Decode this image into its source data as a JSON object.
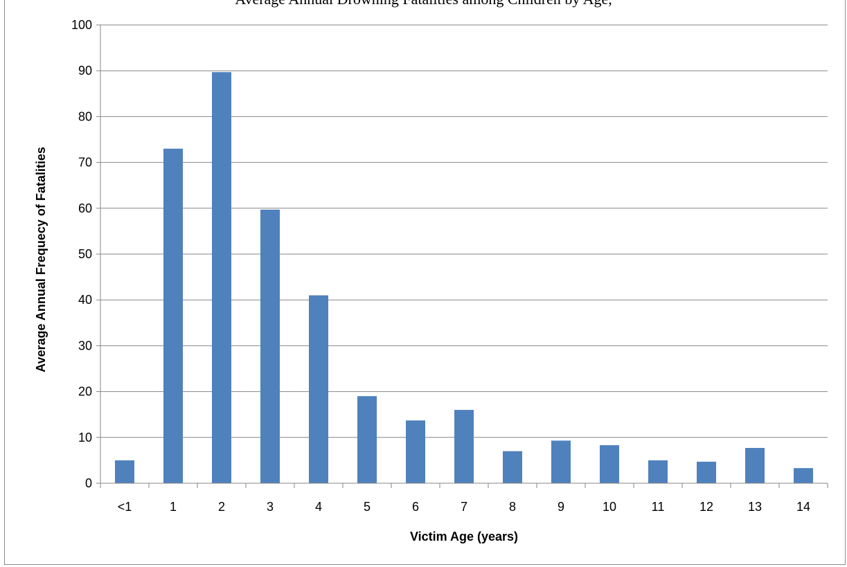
{
  "chart_data": {
    "type": "bar",
    "title": "Average Annual Drowning Fatalities among Children by Age,",
    "xlabel": "Victim Age (years)",
    "ylabel": "Average Annual Frequecy of Fatalities",
    "categories": [
      "<1",
      "1",
      "2",
      "3",
      "4",
      "5",
      "6",
      "7",
      "8",
      "9",
      "10",
      "11",
      "12",
      "13",
      "14"
    ],
    "values": [
      5,
      73,
      89.7,
      59.7,
      41,
      19,
      13.7,
      16,
      7,
      9.3,
      8.3,
      5,
      4.7,
      7.7,
      3.3
    ],
    "ylim": [
      0,
      100
    ],
    "yticks": [
      "0",
      "10",
      "20",
      "30",
      "40",
      "50",
      "60",
      "70",
      "80",
      "90",
      "100"
    ],
    "grid": true,
    "legend": "none",
    "bar_color": "#4f81bd",
    "gridline_color": "#868686"
  }
}
